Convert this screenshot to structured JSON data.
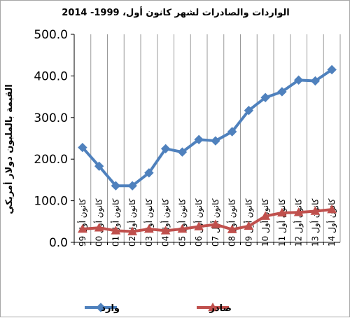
{
  "chart_data": {
    "type": "line",
    "title": "الواردات والصادرات لشهر كانون أول،  1999- 2014",
    "ylabel": "القيمة بالمليون دولار أمريكي",
    "xlabel": "",
    "ylim": [
      0,
      500
    ],
    "yticks": [
      "0.0",
      "100.0",
      "200.0",
      "300.0",
      "400.0",
      "500.0"
    ],
    "categories": [
      "كانون أول 99",
      "كانون أول 00",
      "كانون أول 01",
      "كانون أول 02",
      "كانون أول 03",
      "كانون أول 04",
      "كانون أول 05",
      "كانون أول 06",
      "كانون أول 07",
      "كانون أول 08",
      "كانون أول 09",
      "كانون أول 10",
      "كانون أول 11",
      "كانون أول 12",
      "كانون أول 13",
      "كانون أول 14"
    ],
    "series": [
      {
        "name": "وارد",
        "color": "#4f81bd",
        "marker": "diamond",
        "values": [
          228,
          183,
          136,
          136,
          167,
          225,
          217,
          247,
          244,
          266,
          317,
          348,
          362,
          390,
          388,
          415
        ]
      },
      {
        "name": "صادر",
        "color": "#c0504d",
        "marker": "triangle",
        "values": [
          32,
          35,
          28,
          26,
          32,
          28,
          32,
          38,
          43,
          31,
          39,
          63,
          71,
          72,
          75,
          79
        ]
      }
    ],
    "grid": "vertical",
    "legend_position": "bottom"
  }
}
